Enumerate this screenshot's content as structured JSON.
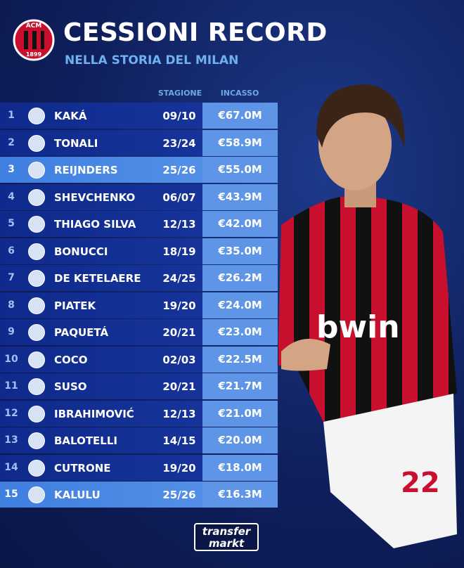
{
  "header": {
    "title": "CESSIONI RECORD",
    "subtitle": "NELLA STORIA DEL MILAN",
    "logo_top": "ACM",
    "logo_year": "1899"
  },
  "table": {
    "columns": [
      "STAGIONE",
      "INCASSO"
    ],
    "rows": [
      [
        1,
        "KAKÁ",
        "09/10",
        "€67.0M"
      ],
      [
        2,
        "TONALI",
        "23/24",
        "€58.9M"
      ],
      [
        3,
        "REIJNDERS",
        "25/26",
        "€55.0M"
      ],
      [
        4,
        "SHEVCHENKO",
        "06/07",
        "€43.9M"
      ],
      [
        5,
        "THIAGO SILVA",
        "12/13",
        "€42.0M"
      ],
      [
        6,
        "BONUCCI",
        "18/19",
        "€35.0M"
      ],
      [
        7,
        "DE KETELAERE",
        "24/25",
        "€26.2M"
      ],
      [
        8,
        "PIATEK",
        "19/20",
        "€24.0M"
      ],
      [
        9,
        "PAQUETÁ",
        "20/21",
        "€23.0M"
      ],
      [
        10,
        "COCO",
        "02/03",
        "€22.5M"
      ],
      [
        11,
        "SUSO",
        "20/21",
        "€21.7M"
      ],
      [
        12,
        "IBRAHIMOVIĆ",
        "12/13",
        "€21.0M"
      ],
      [
        13,
        "BALOTELLI",
        "14/15",
        "€20.0M"
      ],
      [
        14,
        "CUTRONE",
        "19/20",
        "€18.0M"
      ],
      [
        15,
        "KALULU",
        "25/26",
        "€16.3M"
      ]
    ]
  },
  "footer": {
    "brand_top": "transfer",
    "brand_bottom": "markt"
  }
}
